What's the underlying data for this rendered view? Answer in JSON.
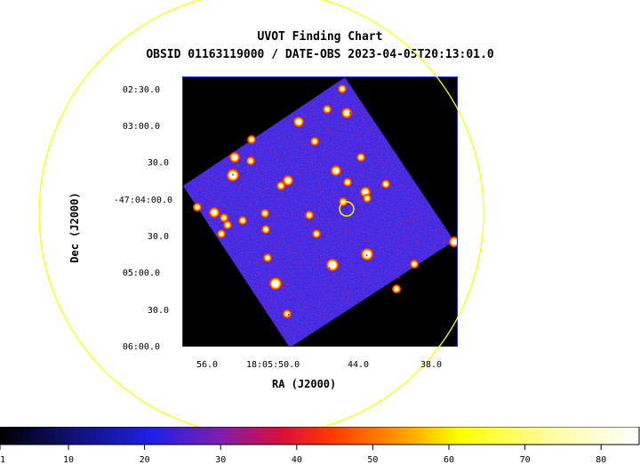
{
  "chart_data": {
    "type": "heatmap",
    "title": "UVOT Finding Chart",
    "subtitle": "OBSID 01163119000 / DATE-OBS 2023-04-05T20:13:01.0",
    "xlabel": "RA (J2000)",
    "ylabel": "Dec (J2000)",
    "ra_ticks": [
      "56.0",
      "18:05:50.0",
      "44.0",
      "38.0"
    ],
    "dec_ticks": [
      "02:30.0",
      "03:00.0",
      "30.0",
      "-47:04:00.0",
      "30.0",
      "05:00.0",
      "30.0",
      "06:00.0"
    ],
    "colorbar": {
      "min": 1,
      "max": 85,
      "tick_labels": [
        "1",
        "10",
        "20",
        "30",
        "40",
        "50",
        "60",
        "70",
        "80"
      ],
      "tick_values": [
        1,
        10,
        20,
        30,
        40,
        50,
        60,
        70,
        80
      ],
      "colors": [
        "#000000",
        "#1a1ad6",
        "#6a22b8",
        "#d0124a",
        "#ff3b00",
        "#ff9a00",
        "#ffff00",
        "#fffcaa",
        "#ffffff"
      ]
    },
    "target_marker_color": "#ffff00",
    "fov_circle_color": "#ffff00"
  }
}
